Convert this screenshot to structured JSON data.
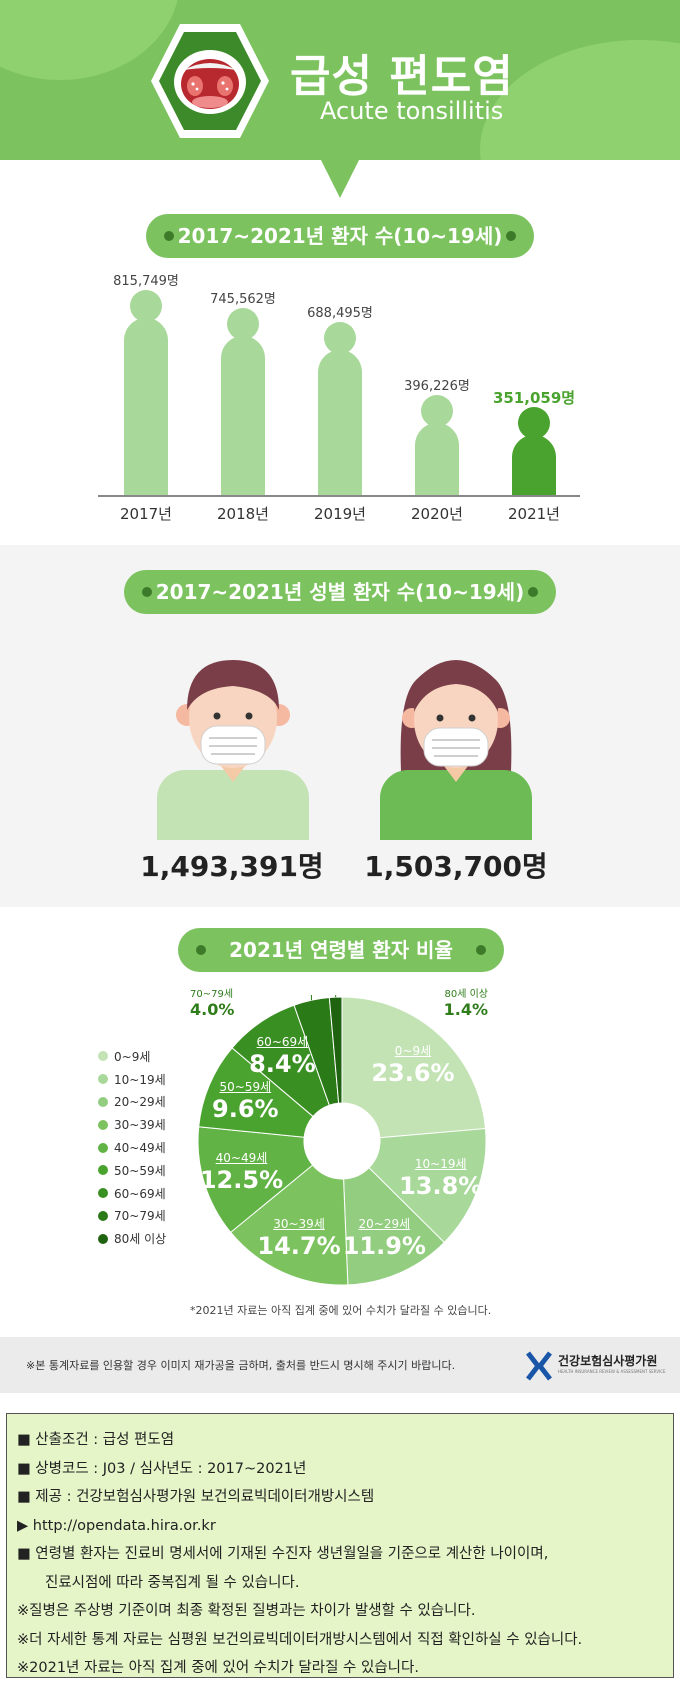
{
  "header": {
    "title": "급성 편도염",
    "subtitle": "Acute tonsillitis",
    "icon": "throat-tonsil-icon"
  },
  "yearly": {
    "title": "2017~2021년 환자 수(10~19세)",
    "years": [
      "2017년",
      "2018년",
      "2019년",
      "2020년",
      "2021년"
    ],
    "value_labels": [
      "815,749명",
      "745,562명",
      "688,495명",
      "396,226명",
      "351,059명"
    ]
  },
  "gender": {
    "title": "2017~2021년 성별 환자 수(10~19세)",
    "male_value": "1,493,391명",
    "female_value": "1,503,700명"
  },
  "age": {
    "title": "2021년 연령별 환자 비율",
    "legend": [
      "0~9세",
      "10~19세",
      "20~29세",
      "30~39세",
      "40~49세",
      "50~59세",
      "60~69세",
      "70~79세",
      "80세 이상"
    ],
    "labels": [
      "0~9세",
      "10~19세",
      "20~29세",
      "30~39세",
      "40~49세",
      "50~59세",
      "60~69세",
      "70~79세",
      "80세 이상"
    ],
    "pct_labels": [
      "23.6%",
      "13.8%",
      "11.9%",
      "14.7%",
      "12.5%",
      "9.6%",
      "8.4%",
      "4.0%",
      "1.4%"
    ],
    "note": "*2021년 자료는 아직 집계 중에 있어 수치가 달라질 수 있습니다."
  },
  "chart_data": [
    {
      "type": "bar",
      "title": "2017~2021년 환자 수(10~19세)",
      "categories": [
        "2017년",
        "2018년",
        "2019년",
        "2020년",
        "2021년"
      ],
      "values": [
        815749,
        745562,
        688495,
        396226,
        351059
      ],
      "highlight_color": "#4aa32e",
      "bar_color": "#a8d99a"
    },
    {
      "type": "pie",
      "title": "2021년 연령별 환자 비율",
      "categories": [
        "0~9세",
        "10~19세",
        "20~29세",
        "30~39세",
        "40~49세",
        "50~59세",
        "60~69세",
        "70~79세",
        "80세 이상"
      ],
      "values": [
        23.6,
        13.8,
        11.9,
        14.7,
        12.5,
        9.6,
        8.4,
        4.0,
        1.4
      ],
      "colors": [
        "#c3e3b4",
        "#a8d99a",
        "#93cd80",
        "#7cc35f",
        "#62b345",
        "#4aa32e",
        "#3a8f22",
        "#2a7a17",
        "#1f6310"
      ],
      "legend_position": "left"
    }
  ],
  "notice": {
    "text": "※본 통계자료를 인용할 경우 이미지 재가공을 금하며, 출처를 반드시 명시해 주시기 바랍니다.",
    "org_name": "건강보험심사평가원",
    "org_sub": "HEALTH INSURANCE REVIEW & ASSESSMENT SERVICE"
  },
  "info": [
    "■ 산출조건 : 급성 편도염",
    "■ 상병코드 : J03 / 심사년도 : 2017~2021년",
    "■ 제공 : 건강보험심사평가원 보건의료빅데이터개방시스템",
    "▶ http://opendata.hira.or.kr",
    "■ 연령별 환자는 진료비 명세서에 기재된 수진자 생년월일을 기준으로 계산한 나이이며,",
    "진료시점에 따라 중복집계 될 수 있습니다.",
    "※질병은 주상병 기준이며 최종 확정된 질병과는 차이가 발생할 수 있습니다.",
    "※더 자세한 통계 자료는 심평원 보건의료빅데이터개방시스템에서 직접 확인하실 수 있습니다.",
    "※2021년 자료는 아직 집계 중에 있어 수치가 달라질 수 있습니다."
  ]
}
